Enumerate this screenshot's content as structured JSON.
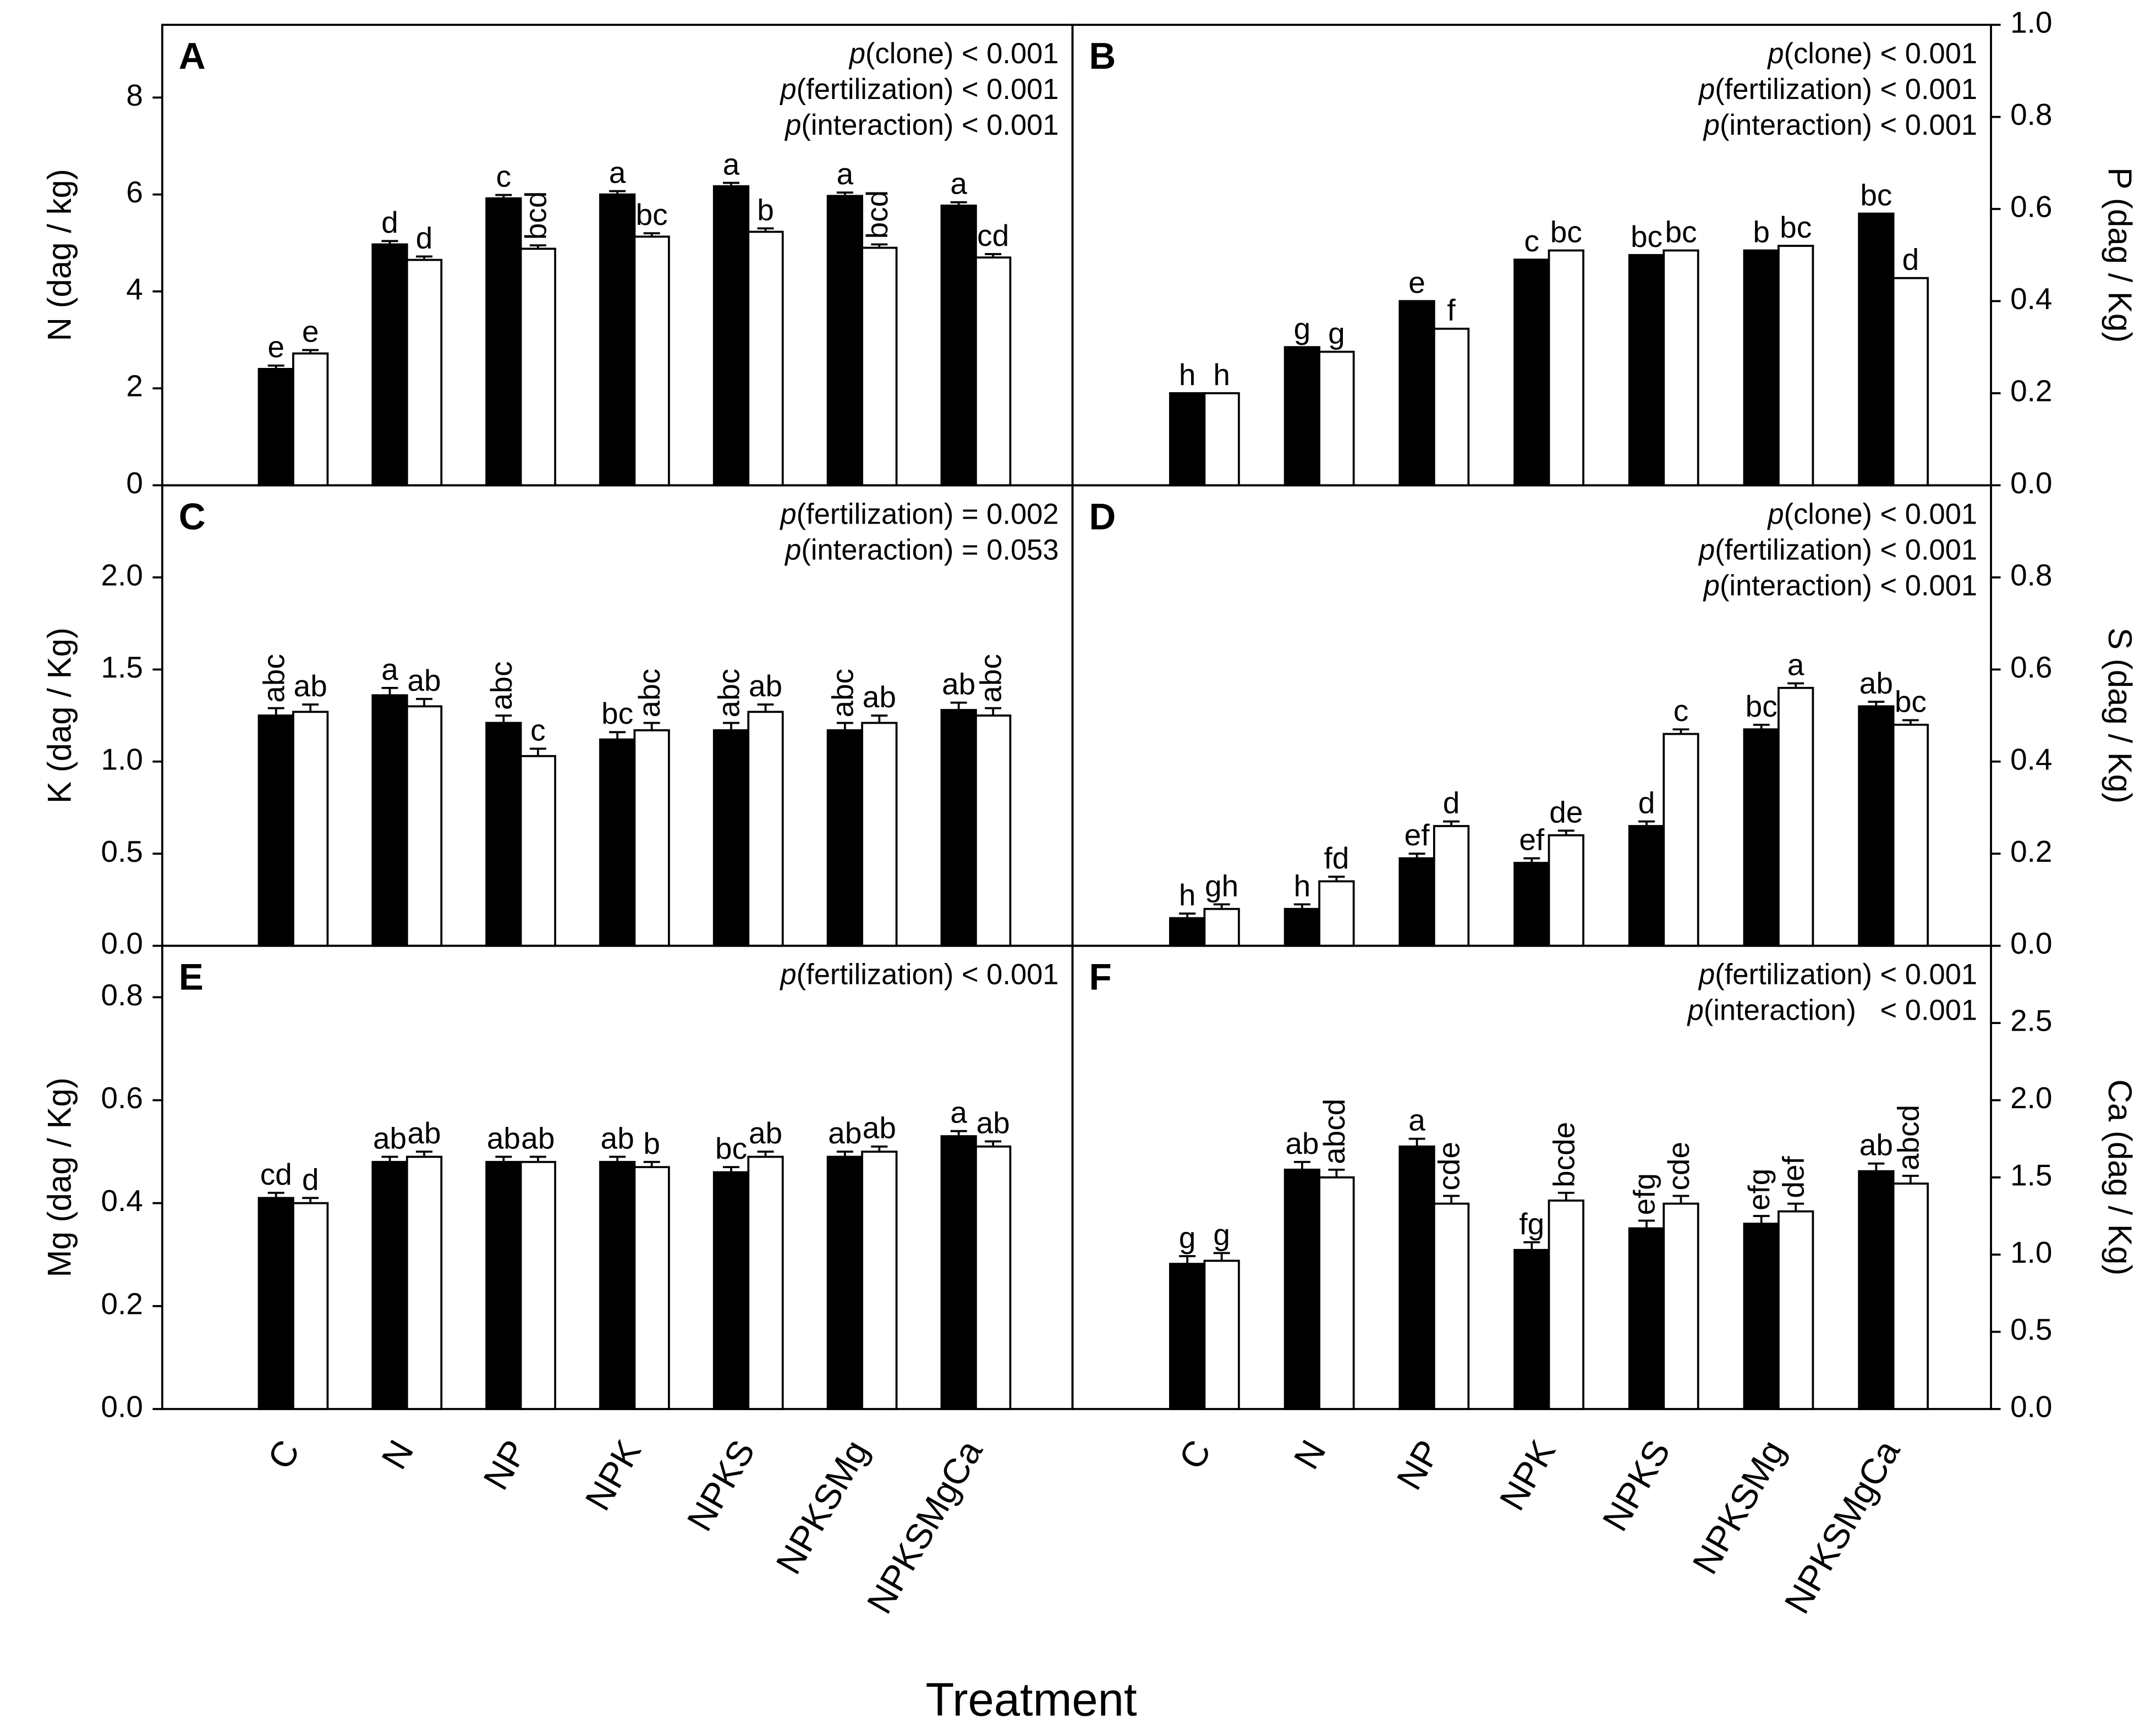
{
  "x_label": "Treatment",
  "chart_data": [
    {
      "type": "bar",
      "panel": "A",
      "ylabel": "N (dag / kg)",
      "y_axis_side": "left",
      "ylim": [
        0,
        9.5
      ],
      "yticks": [
        0,
        2,
        4,
        6,
        8
      ],
      "annotations": [
        "p(clone) < 0.001",
        "p(fertilization) < 0.001",
        "p(interaction) < 0.001"
      ],
      "series": [
        {
          "color": "#000000",
          "values": [
            2.4,
            4.97,
            5.92,
            6.0,
            6.17,
            5.97,
            5.77
          ],
          "errors": [
            0.07,
            0.07,
            0.07,
            0.07,
            0.07,
            0.07,
            0.07
          ],
          "letters": [
            "e",
            "d",
            "c",
            "a",
            "a",
            "a",
            "a"
          ]
        },
        {
          "color": "#ffffff",
          "values": [
            2.72,
            4.65,
            4.88,
            5.13,
            5.23,
            4.9,
            4.7
          ],
          "errors": [
            0.07,
            0.07,
            0.07,
            0.07,
            0.07,
            0.07,
            0.07
          ],
          "letters": [
            "e",
            "d",
            "bcd",
            "bc",
            "b",
            "bcd",
            "cd"
          ]
        }
      ]
    },
    {
      "type": "bar",
      "panel": "B",
      "ylabel": "P (dag / Kg)",
      "y_axis_side": "right",
      "ylim": [
        0,
        1.0
      ],
      "yticks": [
        {
          "value": 0,
          "label": "0.0"
        },
        0.2,
        0.4,
        0.6,
        0.8,
        {
          "value": 1,
          "label": "1.0"
        }
      ],
      "annotations": [
        "p(clone) < 0.001",
        "p(fertilization) < 0.001",
        "p(interaction) < 0.001"
      ],
      "series": [
        {
          "color": "#000000",
          "values": [
            0.2,
            0.3,
            0.4,
            0.49,
            0.5,
            0.51,
            0.59
          ],
          "letters": [
            "h",
            "g",
            "e",
            "c",
            "bc",
            "b",
            "bc"
          ]
        },
        {
          "color": "#ffffff",
          "values": [
            0.2,
            0.29,
            0.34,
            0.51,
            0.51,
            0.52,
            0.45
          ],
          "letters": [
            "h",
            "g",
            "f",
            "bc",
            "bc",
            "bc",
            "d"
          ]
        }
      ]
    },
    {
      "type": "bar",
      "panel": "C",
      "ylabel": "K (dag / Kg)",
      "y_axis_side": "left",
      "ylim": [
        0,
        2.5
      ],
      "yticks": [
        {
          "value": 0,
          "label": "0.0"
        },
        0.5,
        {
          "value": 1,
          "label": "1.0"
        },
        1.5,
        {
          "value": 2,
          "label": "2.0"
        }
      ],
      "annotations": [
        "p(fertilization) = 0.002",
        "p(interaction) = 0.053"
      ],
      "series": [
        {
          "color": "#000000",
          "values": [
            1.25,
            1.36,
            1.21,
            1.12,
            1.17,
            1.17,
            1.28
          ],
          "errors": [
            0.04,
            0.04,
            0.04,
            0.04,
            0.04,
            0.04,
            0.04
          ],
          "letters": [
            "abc",
            "a",
            "abc",
            "bc",
            "abc",
            "abc",
            "ab"
          ]
        },
        {
          "color": "#ffffff",
          "values": [
            1.27,
            1.3,
            1.03,
            1.17,
            1.27,
            1.21,
            1.25
          ],
          "errors": [
            0.04,
            0.04,
            0.04,
            0.04,
            0.04,
            0.04,
            0.04
          ],
          "letters": [
            "ab",
            "ab",
            "c",
            "abc",
            "ab",
            "ab",
            "abc"
          ]
        }
      ]
    },
    {
      "type": "bar",
      "panel": "D",
      "ylabel": "S (dag / Kg)",
      "y_axis_side": "right",
      "ylim": [
        0,
        1.0
      ],
      "yticks": [
        {
          "value": 0,
          "label": "0.0"
        },
        0.2,
        0.4,
        0.6,
        0.8
      ],
      "annotations": [
        "p(clone) < 0.001",
        "p(fertilization) < 0.001",
        "p(interaction) < 0.001"
      ],
      "series": [
        {
          "color": "#000000",
          "values": [
            0.06,
            0.08,
            0.19,
            0.18,
            0.26,
            0.47,
            0.52
          ],
          "errors": [
            0.01,
            0.01,
            0.01,
            0.01,
            0.01,
            0.01,
            0.01
          ],
          "letters": [
            "h",
            "h",
            "ef",
            "ef",
            "d",
            "bc",
            "ab"
          ]
        },
        {
          "color": "#ffffff",
          "values": [
            0.08,
            0.14,
            0.26,
            0.24,
            0.46,
            0.56,
            0.48
          ],
          "errors": [
            0.01,
            0.01,
            0.01,
            0.01,
            0.01,
            0.01,
            0.01
          ],
          "letters": [
            "gh",
            "fd",
            "d",
            "de",
            "c",
            "a",
            "bc"
          ]
        }
      ]
    },
    {
      "type": "bar",
      "panel": "E",
      "ylabel": "Mg (dag / Kg)",
      "y_axis_side": "left",
      "ylim": [
        0,
        0.9
      ],
      "yticks": [
        {
          "value": 0,
          "label": "0.0"
        },
        0.2,
        0.4,
        0.6,
        0.8
      ],
      "annotations": [
        "p(fertilization) < 0.001"
      ],
      "categories": [
        "C",
        "N",
        "NP",
        "NPK",
        "NPKS",
        "NPKSMg",
        "NPKSMgCa"
      ],
      "series": [
        {
          "color": "#000000",
          "values": [
            0.41,
            0.48,
            0.48,
            0.48,
            0.46,
            0.49,
            0.53
          ],
          "errors": [
            0.01,
            0.01,
            0.01,
            0.01,
            0.01,
            0.01,
            0.01
          ],
          "letters": [
            "cd",
            "ab",
            "ab",
            "ab",
            "bc",
            "ab",
            "a"
          ]
        },
        {
          "color": "#ffffff",
          "values": [
            0.4,
            0.49,
            0.48,
            0.47,
            0.49,
            0.5,
            0.51
          ],
          "errors": [
            0.01,
            0.01,
            0.01,
            0.01,
            0.01,
            0.01,
            0.01
          ],
          "letters": [
            "d",
            "ab",
            "ab",
            "b",
            "ab",
            "ab",
            "ab"
          ]
        }
      ]
    },
    {
      "type": "bar",
      "panel": "F",
      "ylabel": "Ca (dag / Kg)",
      "y_axis_side": "right",
      "ylim": [
        0,
        3.0
      ],
      "yticks": [
        {
          "value": 0,
          "label": "0.0"
        },
        0.5,
        {
          "value": 1,
          "label": "1.0"
        },
        1.5,
        {
          "value": 2,
          "label": "2.0"
        },
        2.5
      ],
      "annotations": [
        "p(fertilization) < 0.001",
        "p(interaction)   < 0.001"
      ],
      "categories": [
        "C",
        "N",
        "NP",
        "NPK",
        "NPKS",
        "NPKSMg",
        "NPKSMgCa"
      ],
      "series": [
        {
          "color": "#000000",
          "values": [
            0.94,
            1.55,
            1.7,
            1.03,
            1.17,
            1.2,
            1.54
          ],
          "errors": [
            0.05,
            0.05,
            0.05,
            0.05,
            0.05,
            0.05,
            0.05
          ],
          "letters": [
            "g",
            "ab",
            "a",
            "fg",
            "efg",
            "efg",
            "ab"
          ]
        },
        {
          "color": "#ffffff",
          "values": [
            0.96,
            1.5,
            1.33,
            1.35,
            1.33,
            1.28,
            1.46
          ],
          "errors": [
            0.05,
            0.05,
            0.05,
            0.05,
            0.05,
            0.05,
            0.05
          ],
          "letters": [
            "g",
            "abcd",
            "cde",
            "bcde",
            "cde",
            "def",
            "abcd"
          ]
        }
      ]
    }
  ]
}
